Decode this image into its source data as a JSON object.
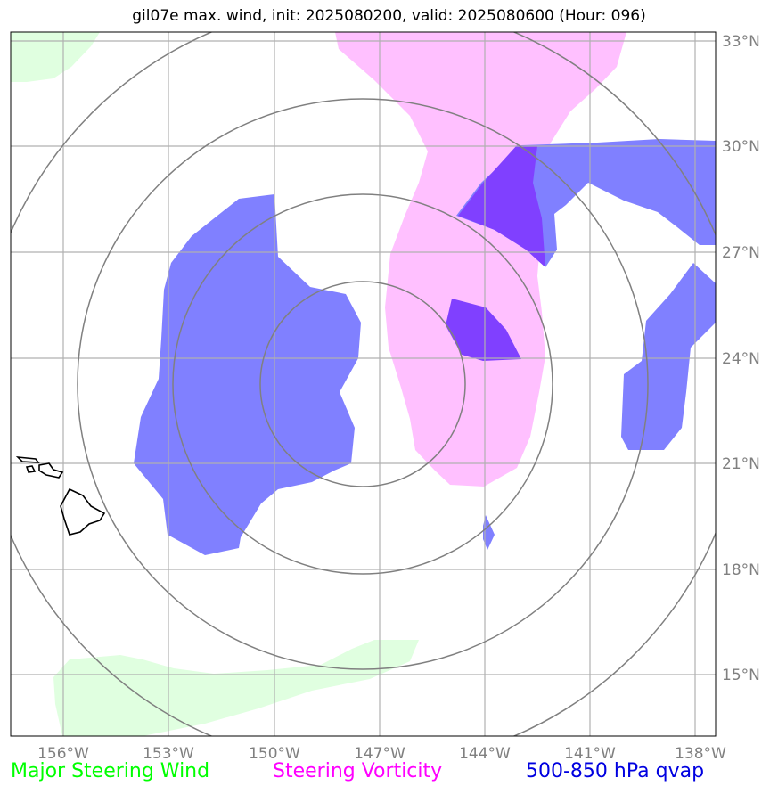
{
  "title": "gil07e max. wind, init: 2025080200, valid: 2025080600 (Hour: 096)",
  "map": {
    "lon_ticks": [
      "156°W",
      "153°W",
      "150°W",
      "147°W",
      "144°W",
      "141°W",
      "138°W"
    ],
    "lat_ticks": [
      "33°N",
      "30°N",
      "27°N",
      "24°N",
      "21°N",
      "18°N",
      "15°N"
    ]
  },
  "legend": [
    {
      "label": "Major Steering Wind",
      "color": "#00ff00"
    },
    {
      "label": "Steering Vorticity",
      "color": "#ff00ff"
    },
    {
      "label": "500-850 hPa qvap",
      "color": "#0000e0"
    }
  ],
  "colors": {
    "steering_wind_fill": "#e0ffe0",
    "vorticity_fill": "#ffc0ff",
    "qvap_fill": "#8080ff",
    "overlap_fill": "#8040ff",
    "grid": "#b0b0b0",
    "range_rings": "#808080",
    "coastline": "#000000"
  }
}
